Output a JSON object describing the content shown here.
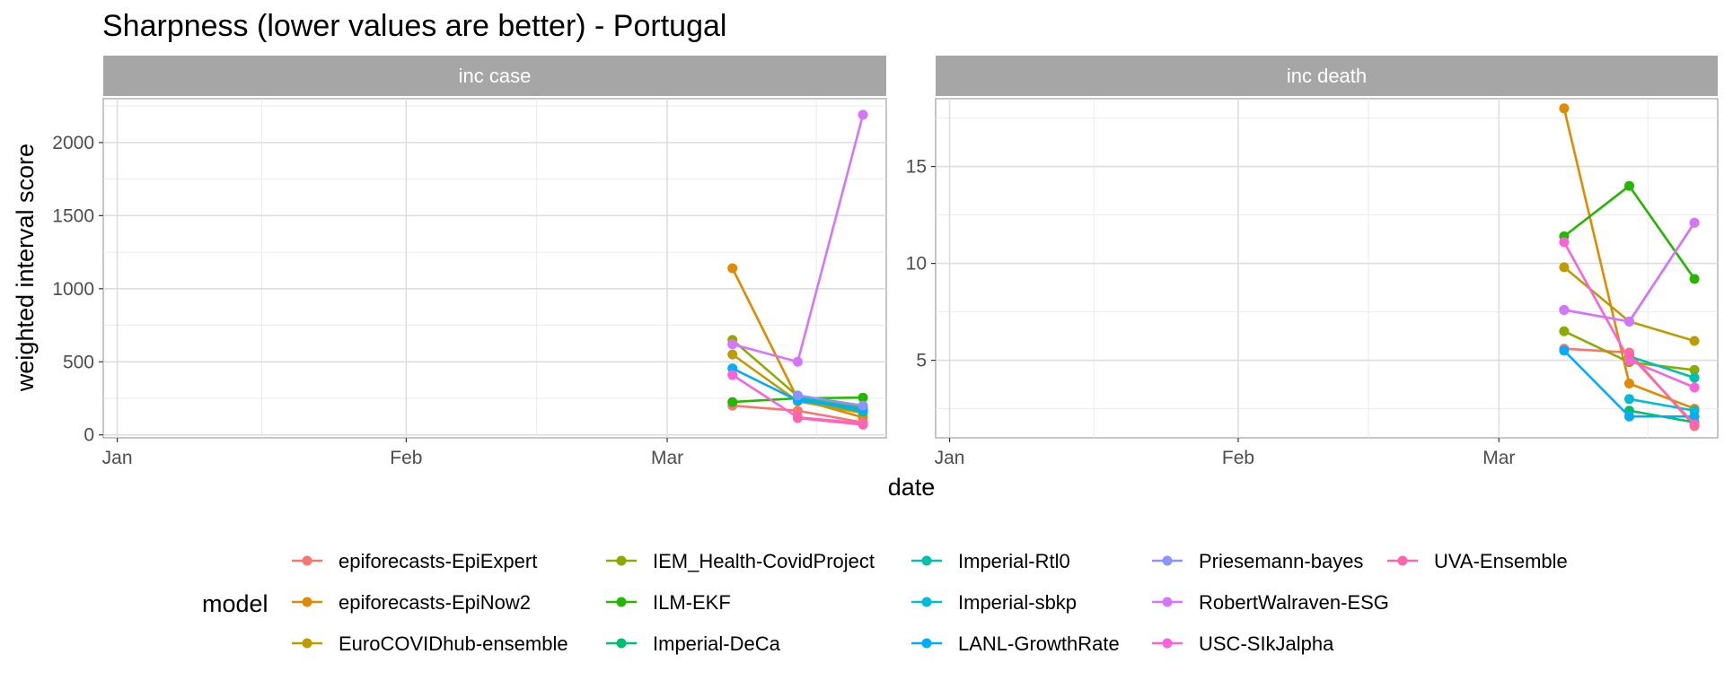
{
  "chart_data": {
    "type": "line",
    "title": "Sharpness (lower values are better) - Portugal",
    "xlabel": "date",
    "ylabel": "weighted interval score",
    "grid": true,
    "legend": {
      "title": "model",
      "placement": "bottom",
      "entries": [
        {
          "name": "epiforecasts-EpiExpert",
          "color": "#F8766D"
        },
        {
          "name": "epiforecasts-EpiNow2",
          "color": "#E18A00"
        },
        {
          "name": "EuroCOVIDhub-ensemble",
          "color": "#BE9C00"
        },
        {
          "name": "IEM_Health-CovidProject",
          "color": "#8CAB00"
        },
        {
          "name": "ILM-EKF",
          "color": "#24B700"
        },
        {
          "name": "Imperial-DeCa",
          "color": "#00BE70"
        },
        {
          "name": "Imperial-Rtl0",
          "color": "#00C1AB"
        },
        {
          "name": "Imperial-sbkp",
          "color": "#00BBDA"
        },
        {
          "name": "LANL-GrowthRate",
          "color": "#00ACFC"
        },
        {
          "name": "Priesemann-bayes",
          "color": "#8B93FF"
        },
        {
          "name": "RobertWalraven-ESG",
          "color": "#D575FE"
        },
        {
          "name": "USC-SIkJalpha",
          "color": "#F962DD"
        },
        {
          "name": "UVA-Ensemble",
          "color": "#FF65AC"
        }
      ]
    },
    "x_tick_labels": [
      "Jan",
      "Feb",
      "Mar"
    ],
    "panels": [
      {
        "label": "inc case",
        "xlim": [
          "2021-01-01",
          "2021-03-23"
        ],
        "ylim": [
          -20,
          2300
        ],
        "y_ticks": [
          0,
          500,
          1000,
          1500,
          2000
        ],
        "x": [
          "2021-03-08",
          "2021-03-15",
          "2021-03-22"
        ],
        "series": [
          {
            "name": "epiforecasts-EpiExpert",
            "values": [
              200,
              165,
              85
            ]
          },
          {
            "name": "epiforecasts-EpiNow2",
            "values": [
              1140,
              245,
              120
            ]
          },
          {
            "name": "EuroCOVIDhub-ensemble",
            "values": [
              550,
              230,
              150
            ]
          },
          {
            "name": "IEM_Health-CovidProject",
            "values": [
              650,
              265,
              185
            ]
          },
          {
            "name": "ILM-EKF",
            "values": [
              225,
              250,
              255
            ]
          },
          {
            "name": "Imperial-DeCa",
            "values": [
              null,
              250,
              160
            ]
          },
          {
            "name": "Imperial-Rtl0",
            "values": [
              null,
              255,
              175
            ]
          },
          {
            "name": "Imperial-sbkp",
            "values": [
              null,
              245,
              165
            ]
          },
          {
            "name": "LANL-GrowthRate",
            "values": [
              455,
              235,
              180
            ]
          },
          {
            "name": "Priesemann-bayes",
            "values": [
              null,
              270,
              200
            ]
          },
          {
            "name": "RobertWalraven-ESG",
            "values": [
              620,
              500,
              2190
            ]
          },
          {
            "name": "USC-SIkJalpha",
            "values": [
              410,
              120,
              80
            ]
          },
          {
            "name": "UVA-Ensemble",
            "values": [
              null,
              115,
              70
            ]
          }
        ]
      },
      {
        "label": "inc death",
        "xlim": [
          "2021-01-01",
          "2021-03-23"
        ],
        "ylim": [
          1,
          18.5
        ],
        "y_ticks": [
          5,
          10,
          15
        ],
        "x": [
          "2021-03-08",
          "2021-03-15",
          "2021-03-22"
        ],
        "series": [
          {
            "name": "epiforecasts-EpiExpert",
            "values": [
              5.6,
              5.4,
              1.6
            ]
          },
          {
            "name": "epiforecasts-EpiNow2",
            "values": [
              18.0,
              3.8,
              2.5
            ]
          },
          {
            "name": "EuroCOVIDhub-ensemble",
            "values": [
              9.8,
              7.0,
              6.0
            ]
          },
          {
            "name": "IEM_Health-CovidProject",
            "values": [
              6.5,
              4.9,
              4.5
            ]
          },
          {
            "name": "ILM-EKF",
            "values": [
              11.4,
              14.0,
              9.2
            ]
          },
          {
            "name": "Imperial-DeCa",
            "values": [
              null,
              2.4,
              1.8
            ]
          },
          {
            "name": "Imperial-Rtl0",
            "values": [
              null,
              5.2,
              4.1
            ]
          },
          {
            "name": "Imperial-sbkp",
            "values": [
              null,
              3.0,
              2.4
            ]
          },
          {
            "name": "LANL-GrowthRate",
            "values": [
              5.5,
              2.1,
              2.1
            ]
          },
          {
            "name": "Priesemann-bayes",
            "values": [
              7.6,
              7.0,
              12.1
            ]
          },
          {
            "name": "RobertWalraven-ESG",
            "values": [
              7.6,
              7.0,
              12.1
            ]
          },
          {
            "name": "USC-SIkJalpha",
            "values": [
              11.1,
              5.0,
              3.6
            ]
          },
          {
            "name": "UVA-Ensemble",
            "values": [
              null,
              5.3,
              1.7
            ]
          }
        ]
      }
    ]
  }
}
